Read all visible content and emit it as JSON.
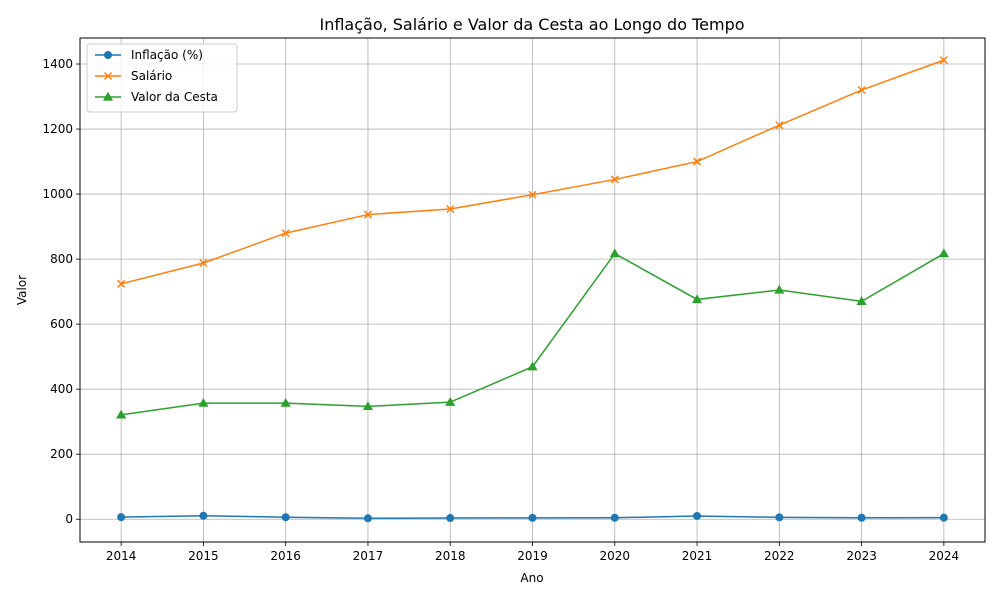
{
  "chart_data": {
    "type": "line",
    "title": "Inflação, Salário e Valor da Cesta ao Longo do Tempo",
    "xlabel": "Ano",
    "ylabel": "Valor",
    "x": [
      2014,
      2015,
      2016,
      2017,
      2018,
      2019,
      2020,
      2021,
      2022,
      2023,
      2024
    ],
    "series": [
      {
        "name": "Inflação (%)",
        "color": "#1f77b4",
        "marker": "circle",
        "values": [
          6.4,
          10.7,
          6.3,
          2.9,
          3.7,
          4.3,
          4.5,
          10.1,
          5.8,
          4.6,
          4.8
        ]
      },
      {
        "name": "Salário",
        "color": "#ff7f0e",
        "marker": "x",
        "values": [
          724,
          788,
          880,
          937,
          954,
          998,
          1045,
          1100,
          1212,
          1320,
          1412
        ]
      },
      {
        "name": "Valor da Cesta",
        "color": "#2ca02c",
        "marker": "triangle",
        "values": [
          321,
          357,
          357,
          347,
          360,
          469,
          817,
          676,
          705,
          670,
          817
        ]
      }
    ],
    "xlim": [
      2013.5,
      2024.5
    ],
    "ylim": [
      -70,
      1480
    ],
    "yticks": [
      0,
      200,
      400,
      600,
      800,
      1000,
      1200,
      1400
    ],
    "grid": true,
    "legend_position": "top-left"
  }
}
